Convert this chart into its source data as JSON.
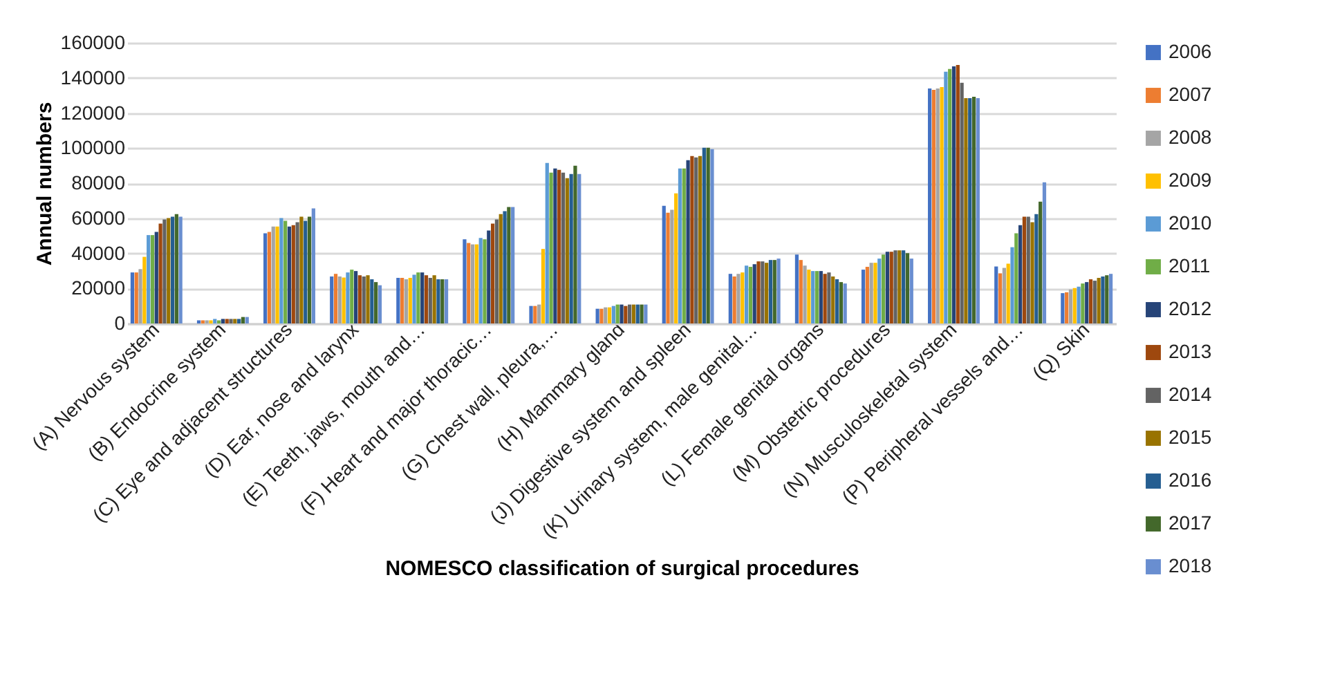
{
  "chart_data": {
    "type": "bar",
    "xlabel": "NOMESCO classification of surgical procedures",
    "ylabel": "Annual numbers",
    "categories": [
      "(A) Nervous system",
      "(B) Endocrine system",
      "(C) Eye and adjacent structures",
      "(D) Ear, nose and larynx",
      "(E) Teeth, jaws, mouth and…",
      "(F) Heart and major thoracic…",
      "(G) Chest wall, pleura,…",
      "(H) Mammary gland",
      "(J) Digestive system and spleen",
      "(K) Urinary system, male genital…",
      "(L) Female genital organs",
      "(M) Obstetric procedures",
      "(N) Musculoskeletal system",
      "(P) Peripheral vessels and…",
      "(Q) Skin"
    ],
    "series": [
      {
        "name": "2006",
        "color": "#4472c4",
        "values": [
          29100,
          1800,
          51400,
          26800,
          26000,
          48000,
          10000,
          8400,
          67100,
          28300,
          39300,
          30700,
          134000,
          32500,
          17300
        ]
      },
      {
        "name": "2007",
        "color": "#ed7d31",
        "values": [
          29100,
          1800,
          52200,
          28300,
          26000,
          45900,
          10000,
          8400,
          63200,
          26800,
          36200,
          32300,
          133200,
          28600,
          17800
        ]
      },
      {
        "name": "2008",
        "color": "#a5a5a5",
        "values": [
          31000,
          1800,
          55300,
          26800,
          25200,
          45100,
          10800,
          9200,
          64800,
          28300,
          33000,
          34600,
          134000,
          31700,
          19400
        ]
      },
      {
        "name": "2009",
        "color": "#ffc000",
        "values": [
          38000,
          1800,
          55300,
          26200,
          26000,
          45100,
          42500,
          9200,
          74200,
          29100,
          30700,
          34600,
          134800,
          34100,
          20200
        ]
      },
      {
        "name": "2010",
        "color": "#5b9bd5",
        "values": [
          50400,
          2600,
          60100,
          29100,
          27800,
          48800,
          91500,
          10000,
          88400,
          33000,
          29900,
          37000,
          143500,
          43500,
          21000
        ]
      },
      {
        "name": "2011",
        "color": "#70ad47",
        "values": [
          50400,
          1800,
          58500,
          30700,
          29100,
          48000,
          86000,
          10800,
          88400,
          32300,
          29900,
          39300,
          145100,
          51400,
          22800
        ]
      },
      {
        "name": "2012",
        "color": "#264478",
        "values": [
          52200,
          2600,
          55300,
          29900,
          29100,
          53000,
          88400,
          10800,
          93100,
          33800,
          29900,
          40900,
          146600,
          56100,
          23600
        ]
      },
      {
        "name": "2013",
        "color": "#9e480e",
        "values": [
          56900,
          2600,
          56100,
          27500,
          27500,
          56900,
          87600,
          10000,
          95500,
          35400,
          28300,
          40900,
          147400,
          60900,
          25200
        ]
      },
      {
        "name": "2014",
        "color": "#636363",
        "values": [
          59300,
          2600,
          57700,
          26800,
          26000,
          59300,
          86000,
          10800,
          94700,
          35400,
          29100,
          41700,
          137200,
          60900,
          24400
        ]
      },
      {
        "name": "2015",
        "color": "#997300",
        "values": [
          60100,
          2600,
          60900,
          27500,
          27500,
          62400,
          82900,
          10800,
          95500,
          34600,
          26800,
          41700,
          128500,
          57700,
          26000
        ]
      },
      {
        "name": "2016",
        "color": "#255e91",
        "values": [
          60900,
          2600,
          58500,
          25200,
          25200,
          64000,
          85200,
          10800,
          100200,
          36200,
          25200,
          41700,
          128500,
          62400,
          26800
        ]
      },
      {
        "name": "2017",
        "color": "#43682b",
        "values": [
          62400,
          3700,
          60900,
          23600,
          25200,
          66400,
          90000,
          10800,
          100200,
          36200,
          23600,
          40100,
          129300,
          69500,
          27500
        ]
      },
      {
        "name": "2018",
        "color": "#698ed0",
        "values": [
          60900,
          3700,
          65600,
          21800,
          25200,
          66400,
          85200,
          10800,
          99400,
          37000,
          22800,
          37000,
          128500,
          80500,
          28300
        ]
      }
    ],
    "ylim": [
      0,
      160000
    ],
    "yticks": [
      0,
      20000,
      40000,
      60000,
      80000,
      100000,
      120000,
      140000,
      160000
    ],
    "grid": "y",
    "legend": "right"
  }
}
